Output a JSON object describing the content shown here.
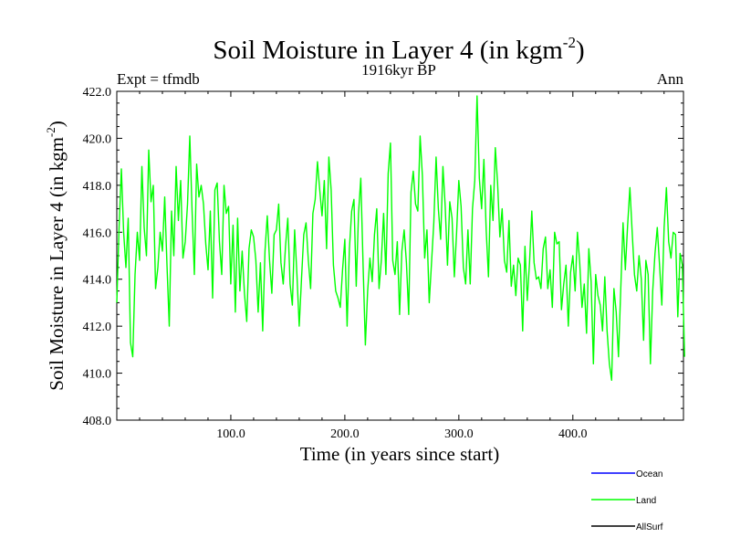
{
  "chart_data": {
    "type": "line",
    "title": "Soil Moisture in Layer 4 (in kgm",
    "title_sup": "-2",
    "title_close": ")",
    "subtitle_left": "Expt = tfmdb",
    "subtitle_center": "1916kyr BP",
    "subtitle_right": "Ann",
    "xlabel": "Time (in years since start)",
    "ylabel": "Soil Moisture in Layer 4 (in kgm",
    "ylabel_sup": "-2",
    "ylabel_close": ")",
    "xlim": [
      0,
      497
    ],
    "ylim": [
      408,
      422
    ],
    "x_ticks": [
      100,
      200,
      300,
      400
    ],
    "x_tick_labels": [
      "100.0",
      "200.0",
      "300.0",
      "400.0"
    ],
    "y_ticks": [
      408,
      410,
      412,
      414,
      416,
      418,
      420,
      422
    ],
    "y_tick_labels": [
      "408.0",
      "410.0",
      "412.0",
      "414.0",
      "416.0",
      "418.0",
      "420.0",
      "422.0"
    ],
    "legend": {
      "placement": "bottom-right",
      "entries": [
        {
          "name": "Ocean",
          "color": "#0000ff"
        },
        {
          "name": "Land",
          "color": "#00ff00"
        },
        {
          "name": "AllSurf",
          "color": "#000000"
        }
      ]
    },
    "series": [
      {
        "name": "Land",
        "color": "#00ff00",
        "x_start": 0,
        "x_step": 2,
        "values": [
          413.0,
          416.2,
          418.7,
          416.0,
          414.5,
          416.6,
          411.3,
          410.7,
          414.2,
          416.0,
          414.8,
          418.8,
          416.2,
          415.0,
          419.5,
          417.3,
          418.0,
          413.6,
          414.5,
          416.0,
          415.2,
          417.5,
          414.6,
          412.0,
          416.9,
          415.0,
          418.8,
          416.5,
          418.2,
          414.9,
          415.6,
          417.2,
          420.1,
          416.9,
          414.2,
          418.9,
          417.5,
          418.0,
          417.2,
          415.5,
          414.4,
          416.9,
          413.2,
          417.8,
          418.1,
          415.6,
          414.2,
          418.0,
          416.8,
          417.1,
          413.8,
          416.3,
          412.6,
          416.6,
          413.5,
          415.2,
          413.4,
          412.2,
          415.3,
          416.1,
          415.8,
          414.8,
          412.6,
          414.7,
          411.8,
          415.2,
          416.7,
          414.8,
          413.4,
          415.9,
          416.1,
          417.2,
          414.7,
          413.8,
          415.4,
          416.6,
          413.8,
          412.9,
          416.1,
          414.2,
          412.0,
          414.0,
          415.9,
          416.4,
          414.8,
          413.6,
          416.8,
          417.4,
          419.0,
          417.8,
          416.7,
          418.2,
          415.3,
          419.2,
          417.8,
          414.6,
          413.5,
          413.2,
          412.8,
          414.4,
          415.7,
          412.0,
          415.3,
          416.9,
          417.4,
          413.7,
          416.8,
          418.3,
          414.6,
          411.2,
          413.5,
          414.9,
          413.9,
          415.9,
          417.0,
          413.6,
          414.8,
          416.8,
          414.2,
          418.5,
          419.8,
          414.8,
          414.2,
          415.6,
          412.5,
          415.2,
          416.1,
          414.7,
          412.5,
          417.7,
          418.6,
          417.2,
          416.9,
          420.1,
          418.4,
          414.9,
          416.1,
          413.0,
          414.7,
          416.4,
          419.2,
          417.0,
          415.7,
          418.8,
          417.1,
          414.6,
          417.3,
          416.6,
          414.1,
          416.0,
          418.2,
          417.1,
          414.5,
          413.8,
          416.1,
          413.8,
          417.0,
          418.2,
          421.8,
          418.3,
          417.0,
          419.1,
          416.1,
          414.1,
          418.0,
          416.5,
          419.6,
          418.1,
          415.8,
          417.0,
          414.8,
          414.3,
          416.5,
          413.7,
          414.6,
          413.3,
          414.9,
          414.6,
          411.8,
          415.4,
          413.1,
          414.7,
          416.9,
          414.7,
          414.0,
          414.1,
          413.6,
          415.3,
          415.8,
          413.6,
          414.4,
          412.8,
          416.0,
          415.5,
          415.6,
          412.7,
          413.8,
          414.6,
          412.0,
          414.3,
          415.0,
          413.5,
          416.0,
          414.7,
          412.8,
          413.8,
          411.7,
          415.3,
          413.9,
          410.4,
          414.2,
          413.3,
          412.9,
          411.8,
          414.1,
          411.8,
          410.4,
          409.7,
          413.6,
          412.6,
          410.7,
          413.6,
          416.4,
          414.4,
          416.3,
          417.9,
          416.0,
          414.2,
          413.5,
          415.0,
          414.0,
          411.4,
          414.8,
          414.2,
          410.4,
          413.5,
          415.1,
          416.2,
          414.6,
          412.9,
          416.2,
          417.9,
          415.6,
          414.9,
          416.0,
          415.9,
          412.4,
          415.1,
          414.6,
          410.7
        ]
      }
    ]
  }
}
